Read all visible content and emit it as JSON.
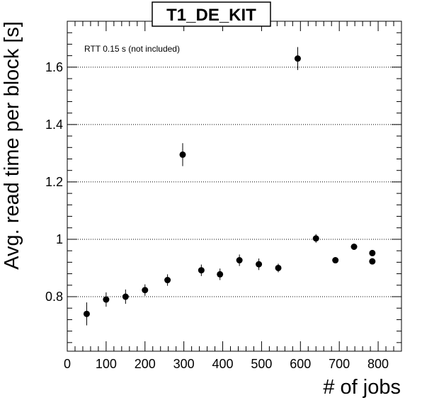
{
  "chart_data": {
    "type": "scatter",
    "title": "T1_DE_KIT",
    "xlabel": "# of jobs",
    "ylabel": "Avg. read time per block [s]",
    "annotation": "RTT 0.15 s (not included)",
    "xlim": [
      0,
      860
    ],
    "ylim": [
      0.61,
      1.76
    ],
    "x_ticks": [
      0,
      100,
      200,
      300,
      400,
      500,
      600,
      700,
      800
    ],
    "y_ticks": [
      0.8,
      1.0,
      1.2,
      1.4,
      1.6
    ],
    "x_tick_labels": [
      "0",
      "100",
      "200",
      "300",
      "400",
      "500",
      "600",
      "700",
      "800"
    ],
    "y_tick_labels": [
      "0.8",
      "1",
      "1.2",
      "1.4",
      "1.6"
    ],
    "y_grid": true,
    "points": [
      {
        "x": 50,
        "y": 0.74,
        "err": 0.04
      },
      {
        "x": 100,
        "y": 0.79,
        "err": 0.025
      },
      {
        "x": 150,
        "y": 0.8,
        "err": 0.025
      },
      {
        "x": 200,
        "y": 0.823,
        "err": 0.02
      },
      {
        "x": 258,
        "y": 0.858,
        "err": 0.02
      },
      {
        "x": 297,
        "y": 1.295,
        "err": 0.04
      },
      {
        "x": 345,
        "y": 0.892,
        "err": 0.02
      },
      {
        "x": 393,
        "y": 0.878,
        "err": 0.02
      },
      {
        "x": 443,
        "y": 0.927,
        "err": 0.02
      },
      {
        "x": 493,
        "y": 0.913,
        "err": 0.02
      },
      {
        "x": 543,
        "y": 0.9,
        "err": 0.015
      },
      {
        "x": 593,
        "y": 1.63,
        "err": 0.04
      },
      {
        "x": 640,
        "y": 1.003,
        "err": 0.015
      },
      {
        "x": 690,
        "y": 0.927,
        "err": 0.01
      },
      {
        "x": 738,
        "y": 0.974,
        "err": 0.01
      },
      {
        "x": 785,
        "y": 0.952,
        "err": 0.01
      },
      {
        "x": 785,
        "y": 0.923,
        "err": 0.01
      }
    ]
  }
}
